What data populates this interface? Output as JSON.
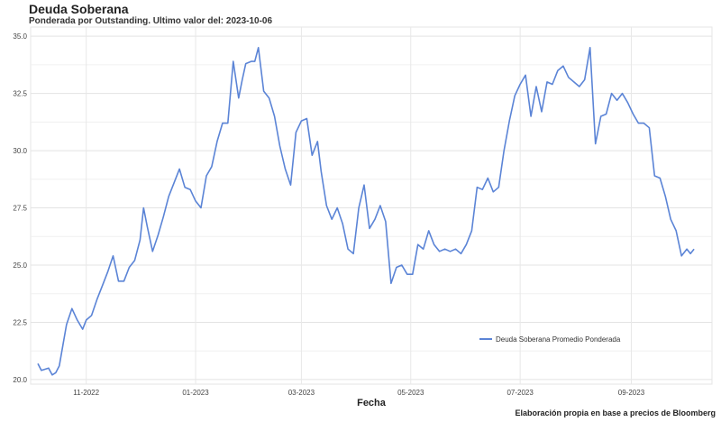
{
  "header": {
    "title": "Deuda Soberana",
    "subtitle": "Ponderada por Outstanding. Ultimo valor del: 2023-10-06"
  },
  "caption": "Elaboración propia en base a precios de Bloomberg",
  "chart_data": {
    "type": "line",
    "xlabel": "Fecha",
    "ylabel": "",
    "xlim": [
      "2022-10-01",
      "2023-10-16"
    ],
    "ylim": [
      19.8,
      35.4
    ],
    "yticks": [
      20.0,
      22.5,
      25.0,
      27.5,
      30.0,
      32.5,
      35.0
    ],
    "ytick_labels": [
      "20.0",
      "22.5",
      "25.0",
      "27.5",
      "30.0",
      "32.5",
      "35.0"
    ],
    "xticks": [
      "2022-11-01",
      "2023-01-01",
      "2023-03-01",
      "2023-05-01",
      "2023-07-01",
      "2023-09-01"
    ],
    "xtick_labels": [
      "11-2022",
      "01-2023",
      "03-2023",
      "05-2023",
      "07-2023",
      "09-2023"
    ],
    "grid": true,
    "legend": {
      "placement": "bottom-right"
    },
    "line_color": "#5b84d6",
    "series": [
      {
        "name": "Deuda Soberana Promedio Ponderada",
        "x": [
          "2022-10-05",
          "2022-10-07",
          "2022-10-11",
          "2022-10-13",
          "2022-10-15",
          "2022-10-17",
          "2022-10-19",
          "2022-10-21",
          "2022-10-24",
          "2022-10-27",
          "2022-10-30",
          "2022-11-01",
          "2022-11-04",
          "2022-11-07",
          "2022-11-10",
          "2022-11-13",
          "2022-11-16",
          "2022-11-19",
          "2022-11-22",
          "2022-11-25",
          "2022-11-28",
          "2022-12-01",
          "2022-12-03",
          "2022-12-05",
          "2022-12-08",
          "2022-12-11",
          "2022-12-14",
          "2022-12-17",
          "2022-12-20",
          "2022-12-23",
          "2022-12-26",
          "2022-12-29",
          "2023-01-01",
          "2023-01-04",
          "2023-01-07",
          "2023-01-10",
          "2023-01-13",
          "2023-01-16",
          "2023-01-19",
          "2023-01-22",
          "2023-01-25",
          "2023-01-27",
          "2023-01-29",
          "2023-02-01",
          "2023-02-03",
          "2023-02-05",
          "2023-02-08",
          "2023-02-11",
          "2023-02-14",
          "2023-02-17",
          "2023-02-20",
          "2023-02-23",
          "2023-02-26",
          "2023-03-01",
          "2023-03-04",
          "2023-03-07",
          "2023-03-10",
          "2023-03-12",
          "2023-03-15",
          "2023-03-18",
          "2023-03-21",
          "2023-03-24",
          "2023-03-27",
          "2023-03-30",
          "2023-04-02",
          "2023-04-05",
          "2023-04-08",
          "2023-04-11",
          "2023-04-14",
          "2023-04-17",
          "2023-04-20",
          "2023-04-23",
          "2023-04-26",
          "2023-04-29",
          "2023-05-02",
          "2023-05-05",
          "2023-05-08",
          "2023-05-11",
          "2023-05-14",
          "2023-05-17",
          "2023-05-20",
          "2023-05-23",
          "2023-05-26",
          "2023-05-29",
          "2023-06-01",
          "2023-06-04",
          "2023-06-07",
          "2023-06-10",
          "2023-06-13",
          "2023-06-16",
          "2023-06-19",
          "2023-06-22",
          "2023-06-25",
          "2023-06-28",
          "2023-07-01",
          "2023-07-04",
          "2023-07-07",
          "2023-07-10",
          "2023-07-13",
          "2023-07-16",
          "2023-07-19",
          "2023-07-22",
          "2023-07-25",
          "2023-07-28",
          "2023-07-31",
          "2023-08-03",
          "2023-08-06",
          "2023-08-09",
          "2023-08-12",
          "2023-08-15",
          "2023-08-18",
          "2023-08-21",
          "2023-08-24",
          "2023-08-27",
          "2023-08-30",
          "2023-09-02",
          "2023-09-05",
          "2023-09-08",
          "2023-09-11",
          "2023-09-14",
          "2023-09-17",
          "2023-09-20",
          "2023-09-23",
          "2023-09-26",
          "2023-09-29",
          "2023-10-02",
          "2023-10-04",
          "2023-10-06"
        ],
        "y": [
          20.7,
          20.4,
          20.5,
          20.2,
          20.3,
          20.6,
          21.5,
          22.4,
          23.1,
          22.6,
          22.2,
          22.6,
          22.8,
          23.5,
          24.1,
          24.7,
          25.4,
          24.3,
          24.3,
          24.9,
          25.2,
          26.1,
          27.5,
          26.7,
          25.6,
          26.3,
          27.1,
          28.0,
          28.6,
          29.2,
          28.4,
          28.3,
          27.8,
          27.5,
          28.9,
          29.3,
          30.4,
          31.2,
          31.2,
          33.9,
          32.3,
          33.1,
          33.8,
          33.9,
          33.9,
          34.5,
          32.6,
          32.3,
          31.5,
          30.2,
          29.2,
          28.5,
          30.8,
          31.3,
          31.4,
          29.8,
          30.4,
          29.1,
          27.6,
          27.0,
          27.5,
          26.8,
          25.7,
          25.5,
          27.5,
          28.5,
          26.6,
          27.0,
          27.6,
          26.9,
          24.2,
          24.9,
          25.0,
          24.6,
          24.6,
          25.9,
          25.7,
          26.5,
          25.9,
          25.6,
          25.7,
          25.6,
          25.7,
          25.5,
          25.9,
          26.5,
          28.4,
          28.3,
          28.8,
          28.2,
          28.4,
          30.0,
          31.3,
          32.4,
          32.9,
          33.3,
          31.5,
          32.8,
          31.7,
          33.0,
          32.9,
          33.5,
          33.7,
          33.2,
          33.0,
          32.8,
          33.1,
          34.5,
          30.3,
          31.5,
          31.6,
          32.5,
          32.2,
          32.5,
          32.1,
          31.6,
          31.2,
          31.2,
          31.0,
          28.9,
          28.8,
          28.0,
          27.0,
          26.5,
          25.4,
          25.7,
          25.5,
          25.7
        ]
      }
    ]
  }
}
